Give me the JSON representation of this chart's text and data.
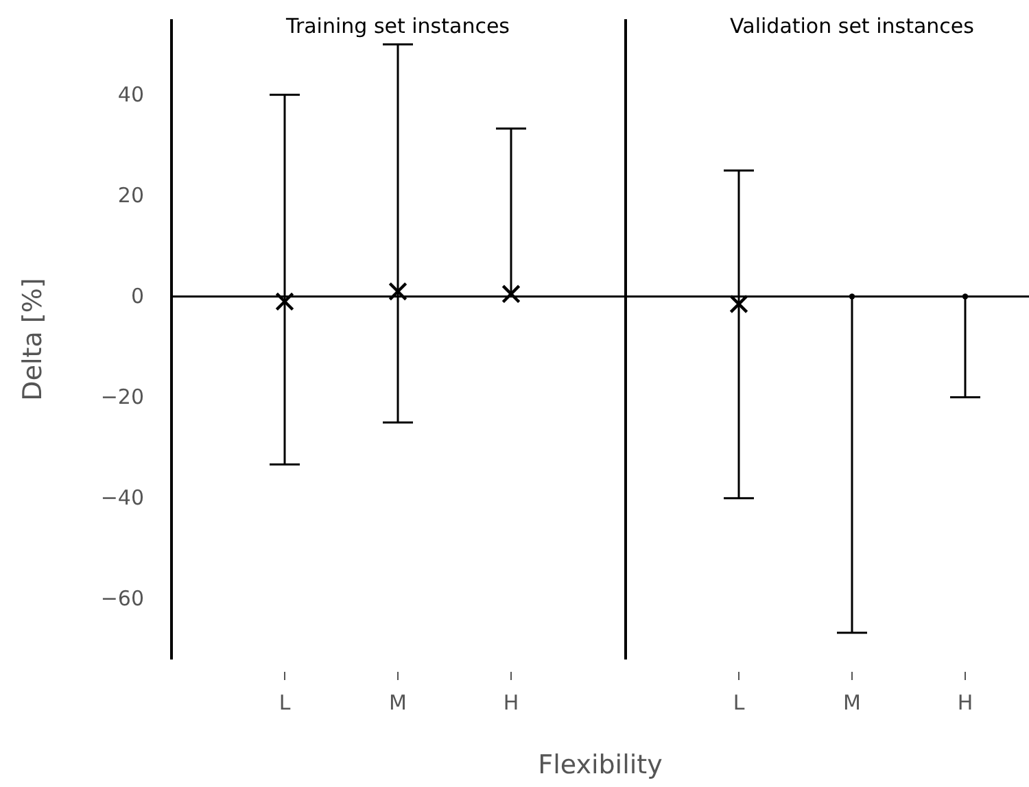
{
  "chart_data": [
    {
      "type": "scatter",
      "title": "Training set instances",
      "ylabel": "Delta [%]",
      "xlabel": "Flexibility",
      "categories": [
        "L",
        "M",
        "H"
      ],
      "ylim": [
        -72,
        55
      ],
      "yticks": [
        -60,
        -40,
        -20,
        0,
        20,
        40
      ],
      "ref_lines": [
        {
          "axis": "y",
          "value": 0,
          "color": "#000000"
        }
      ],
      "series": [
        {
          "color": "#000000",
          "marker": "cross",
          "values": [
            -1,
            1,
            0.5
          ],
          "errors": [
            [
              -33.3,
              40
            ],
            [
              -25,
              50
            ],
            [
              0,
              33.3
            ]
          ]
        }
      ],
      "grid": false
    },
    {
      "type": "scatter",
      "title": "Validation set instances",
      "categories": [
        "L",
        "M",
        "H"
      ],
      "tick_labels": "x",
      "ylim": [
        -72,
        55
      ],
      "yticks": [
        -60,
        -40,
        -20,
        0,
        20,
        40
      ],
      "ref_lines": [
        {
          "axis": "y",
          "value": 0,
          "color": "#000000"
        }
      ],
      "series": [
        {
          "color": "#000000",
          "marker": "cross",
          "values": [
            -1.5,
            null,
            null
          ],
          "errors": [
            [
              -40,
              25
            ],
            null,
            null
          ]
        },
        {
          "color": "#000000",
          "marker": "circle",
          "values": [
            null,
            0,
            0
          ],
          "errors": [
            null,
            [
              -66.7,
              0
            ],
            [
              -20,
              0
            ]
          ]
        }
      ],
      "grid": false
    }
  ]
}
